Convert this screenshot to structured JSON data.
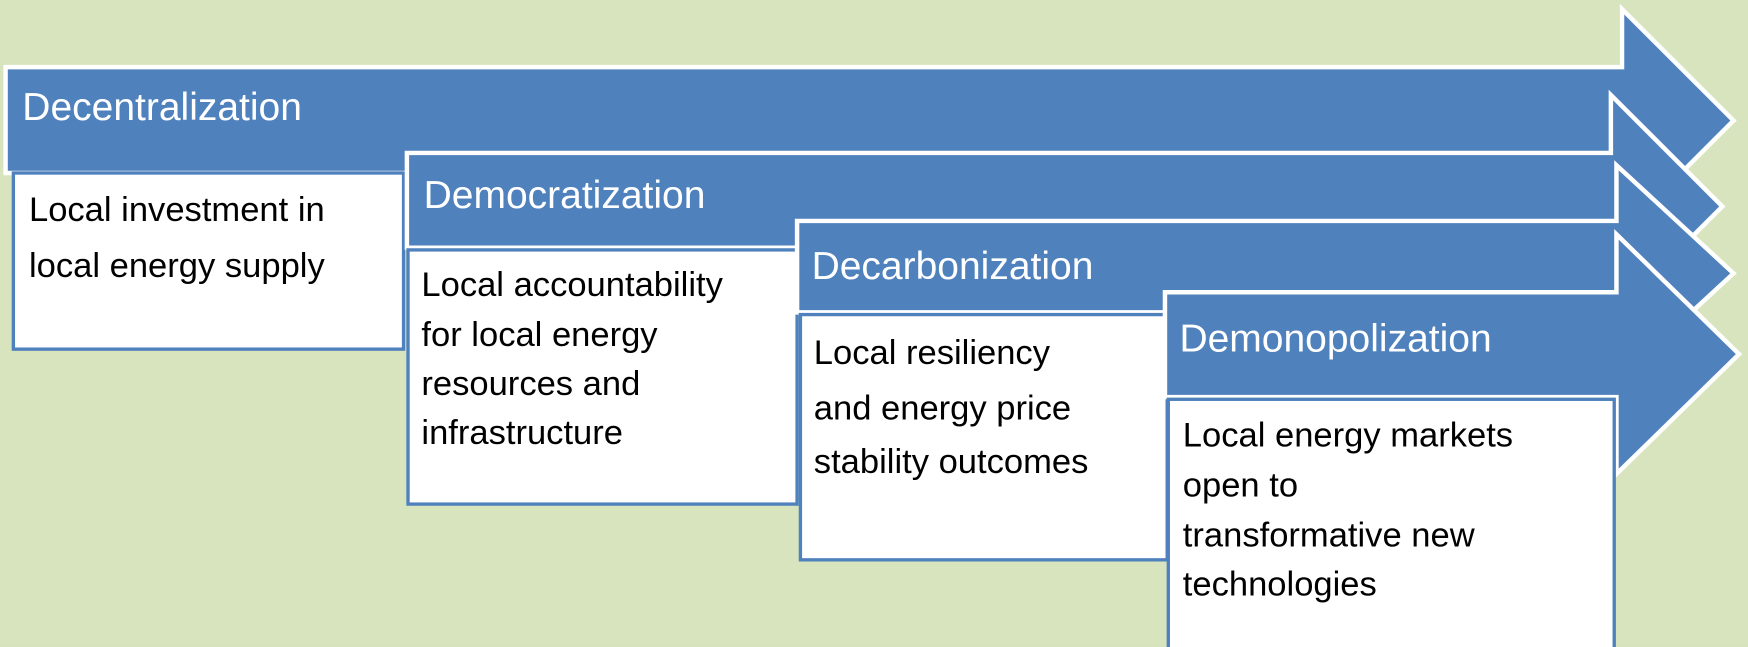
{
  "stages": [
    {
      "title": "Decentralization",
      "description": [
        "Local investment in",
        "local energy supply"
      ]
    },
    {
      "title": "Democratization",
      "description": [
        "Local accountability",
        "for local energy",
        "resources and",
        "infrastructure"
      ]
    },
    {
      "title": "Decarbonization",
      "description": [
        "Local resiliency",
        "and energy price",
        "stability outcomes"
      ]
    },
    {
      "title": "Demonopolization",
      "description": [
        "Local energy markets",
        "open to",
        "transformative new",
        "technologies"
      ]
    }
  ]
}
